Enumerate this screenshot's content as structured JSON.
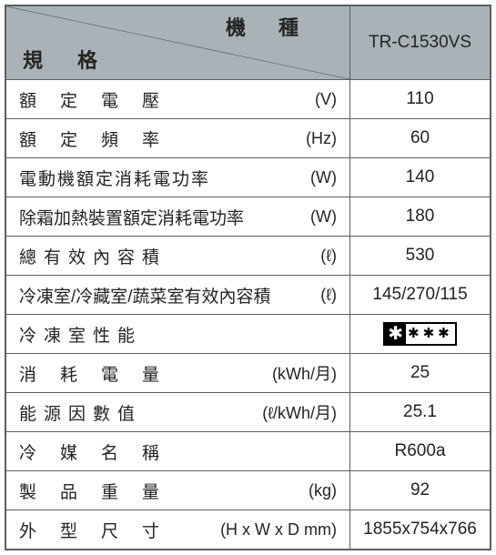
{
  "header": {
    "top_label": "機種",
    "bottom_label": "規格",
    "model": "TR-C1530VS"
  },
  "rows": [
    {
      "label": "額定電壓",
      "unit": "(V)",
      "value": "110",
      "ls": "ls-wide"
    },
    {
      "label": "額定頻率",
      "unit": "(Hz)",
      "value": "60",
      "ls": "ls-wide"
    },
    {
      "label": "電動機額定消耗電功率",
      "unit": "(W)",
      "value": "140",
      "ls": "ls-sm"
    },
    {
      "label": "除霜加熱裝置額定消耗電功率",
      "unit": "(W)",
      "value": "180",
      "ls": "ls-0"
    },
    {
      "label": "總有效內容積",
      "unit": "(ℓ)",
      "value": "530",
      "ls": "ls-med"
    },
    {
      "label": "冷凍室/冷藏室/蔬菜室有效內容積",
      "unit": "(ℓ)",
      "value": "145/270/115",
      "ls": "ls-0"
    },
    {
      "label": "冷凍室性能",
      "unit": "",
      "value": "__STAR__",
      "ls": "ls-med"
    },
    {
      "label": "消耗電量",
      "unit": "(kWh/月)",
      "value": "25",
      "ls": "ls-wide"
    },
    {
      "label": "能源因數值",
      "unit": "(ℓ/kWh/月)",
      "value": "25.1",
      "ls": "ls-med"
    },
    {
      "label": "冷媒名稱",
      "unit": "",
      "value": "R600a",
      "ls": "ls-wide"
    },
    {
      "label": "製品重量",
      "unit": "(kg)",
      "value": "92",
      "ls": "ls-wide"
    },
    {
      "label": "外型尺寸",
      "unit": "(H x W x D mm)",
      "value": "1855x754x766",
      "ls": "ls-wide"
    }
  ],
  "colors": {
    "border": "#5a5f63",
    "header_bg": "#a9b2b6",
    "text": "#232323",
    "body_bg": "#ffffff"
  }
}
